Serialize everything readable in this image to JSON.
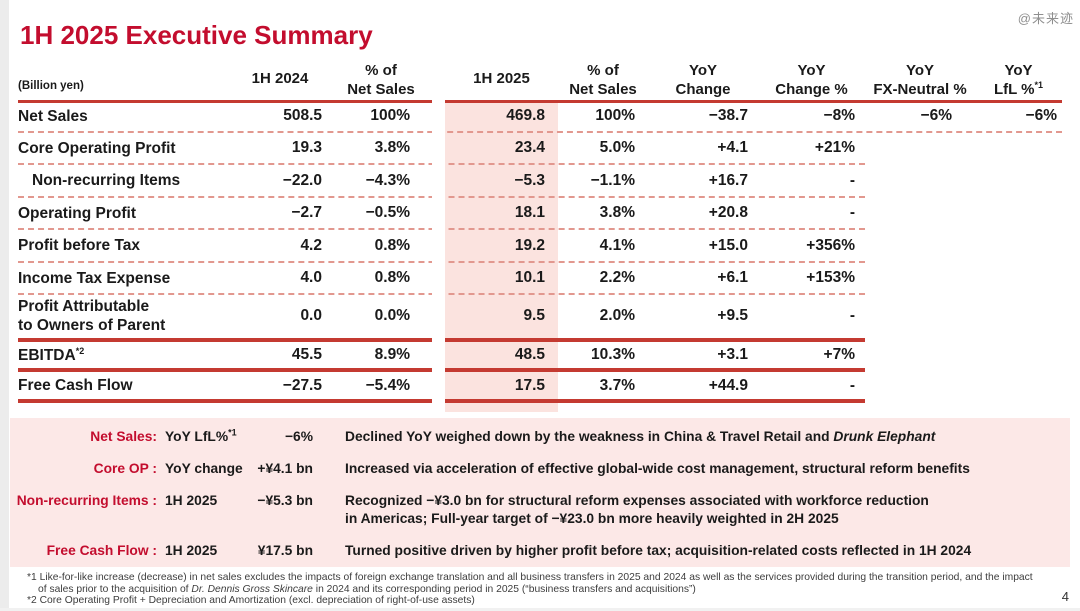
{
  "page": {
    "title": "1H 2025 Executive Summary",
    "watermark": "@未来迹",
    "unit_label": "(Billion yen)",
    "page_number": "4"
  },
  "colors": {
    "title_red": "#c30d2e",
    "rule_red": "#c43a31",
    "dash_pink": "#e2988f",
    "band_pink": "#fbe3df",
    "notes_pink": "#fce8e7",
    "text": "#1a1a1a"
  },
  "table": {
    "headers": [
      {
        "line1": "1H 2024",
        "line2": ""
      },
      {
        "line1": "% of",
        "line2": "Net Sales"
      },
      {
        "line1": "1H 2025",
        "line2": ""
      },
      {
        "line1": "% of",
        "line2": "Net Sales"
      },
      {
        "line1": "YoY",
        "line2": "Change"
      },
      {
        "line1": "YoY",
        "line2": "Change %"
      },
      {
        "line1": "YoY",
        "line2": "FX-Neutral %"
      },
      {
        "line1": "YoY",
        "line2": "LfL %",
        "sup": "*1"
      }
    ],
    "rows": [
      {
        "label": "Net Sales",
        "cells": [
          "508.5",
          "100%",
          "469.8",
          "100%",
          "−38.7",
          "−8%",
          "−6%",
          "−6%"
        ]
      },
      {
        "label": "Core Operating Profit",
        "cells": [
          "19.3",
          "3.8%",
          "23.4",
          "5.0%",
          "+4.1",
          "+21%",
          "",
          ""
        ]
      },
      {
        "label": "Non-recurring Items",
        "cells": [
          "−22.0",
          "−4.3%",
          "−5.3",
          "−1.1%",
          "+16.7",
          "-",
          "",
          ""
        ]
      },
      {
        "label": "Operating Profit",
        "cells": [
          "−2.7",
          "−0.5%",
          "18.1",
          "3.8%",
          "+20.8",
          "-",
          "",
          ""
        ]
      },
      {
        "label": "Profit before Tax",
        "cells": [
          "4.2",
          "0.8%",
          "19.2",
          "4.1%",
          "+15.0",
          "+356%",
          "",
          ""
        ]
      },
      {
        "label": "Income Tax Expense",
        "cells": [
          "4.0",
          "0.8%",
          "10.1",
          "2.2%",
          "+6.1",
          "+153%",
          "",
          ""
        ]
      },
      {
        "label": "Profit Attributable",
        "label2": "to Owners of Parent",
        "cells": [
          "0.0",
          "0.0%",
          "9.5",
          "2.0%",
          "+9.5",
          "-",
          "",
          ""
        ]
      },
      {
        "label": "EBITDA",
        "label_sup": "*2",
        "cells": [
          "45.5",
          "8.9%",
          "48.5",
          "10.3%",
          "+3.1",
          "+7%",
          "",
          ""
        ]
      },
      {
        "label": "Free Cash Flow",
        "cells": [
          "−27.5",
          "−5.4%",
          "17.5",
          "3.7%",
          "+44.9",
          "-",
          "",
          ""
        ]
      }
    ]
  },
  "notes": [
    {
      "label": "Net Sales:",
      "metric": "YoY LfL%",
      "metric_sup": "*1",
      "value": "−6%",
      "desc": "Declined YoY weighed down by the weakness in China & Travel Retail and ",
      "desc_italic": "Drunk Elephant"
    },
    {
      "label": "Core OP :",
      "metric": "YoY change",
      "value": "+¥4.1 bn",
      "desc": "Increased via acceleration of effective global-wide cost management, structural reform benefits"
    },
    {
      "label": "Non-recurring Items :",
      "metric": "1H 2025",
      "value": "−¥5.3 bn",
      "desc": "Recognized −¥3.0 bn for structural reform expenses associated with workforce reduction",
      "desc_line2": "in Americas; Full-year target of −¥23.0 bn more heavily weighted in 2H 2025"
    },
    {
      "label": "Free Cash Flow :",
      "metric": "1H 2025",
      "value": "¥17.5 bn",
      "desc": "Turned positive driven by higher profit before tax; acquisition-related costs reflected in 1H 2024"
    }
  ],
  "footnotes": {
    "fn1_pre": "*1 Like-for-like increase (decrease) in net sales excludes the impacts of foreign exchange translation and all business transfers in 2025 and 2024 as well as the services provided during the transition period, and the impact of sales prior to the acquisition of ",
    "fn1_italic": "Dr. Dennis Gross Skincare",
    "fn1_post": " in 2024 and its corresponding period in 2025 (“business transfers and acquisitions”)",
    "fn2": "*2 Core Operating Profit + Depreciation and Amortization (excl. depreciation of right-of-use assets)"
  }
}
